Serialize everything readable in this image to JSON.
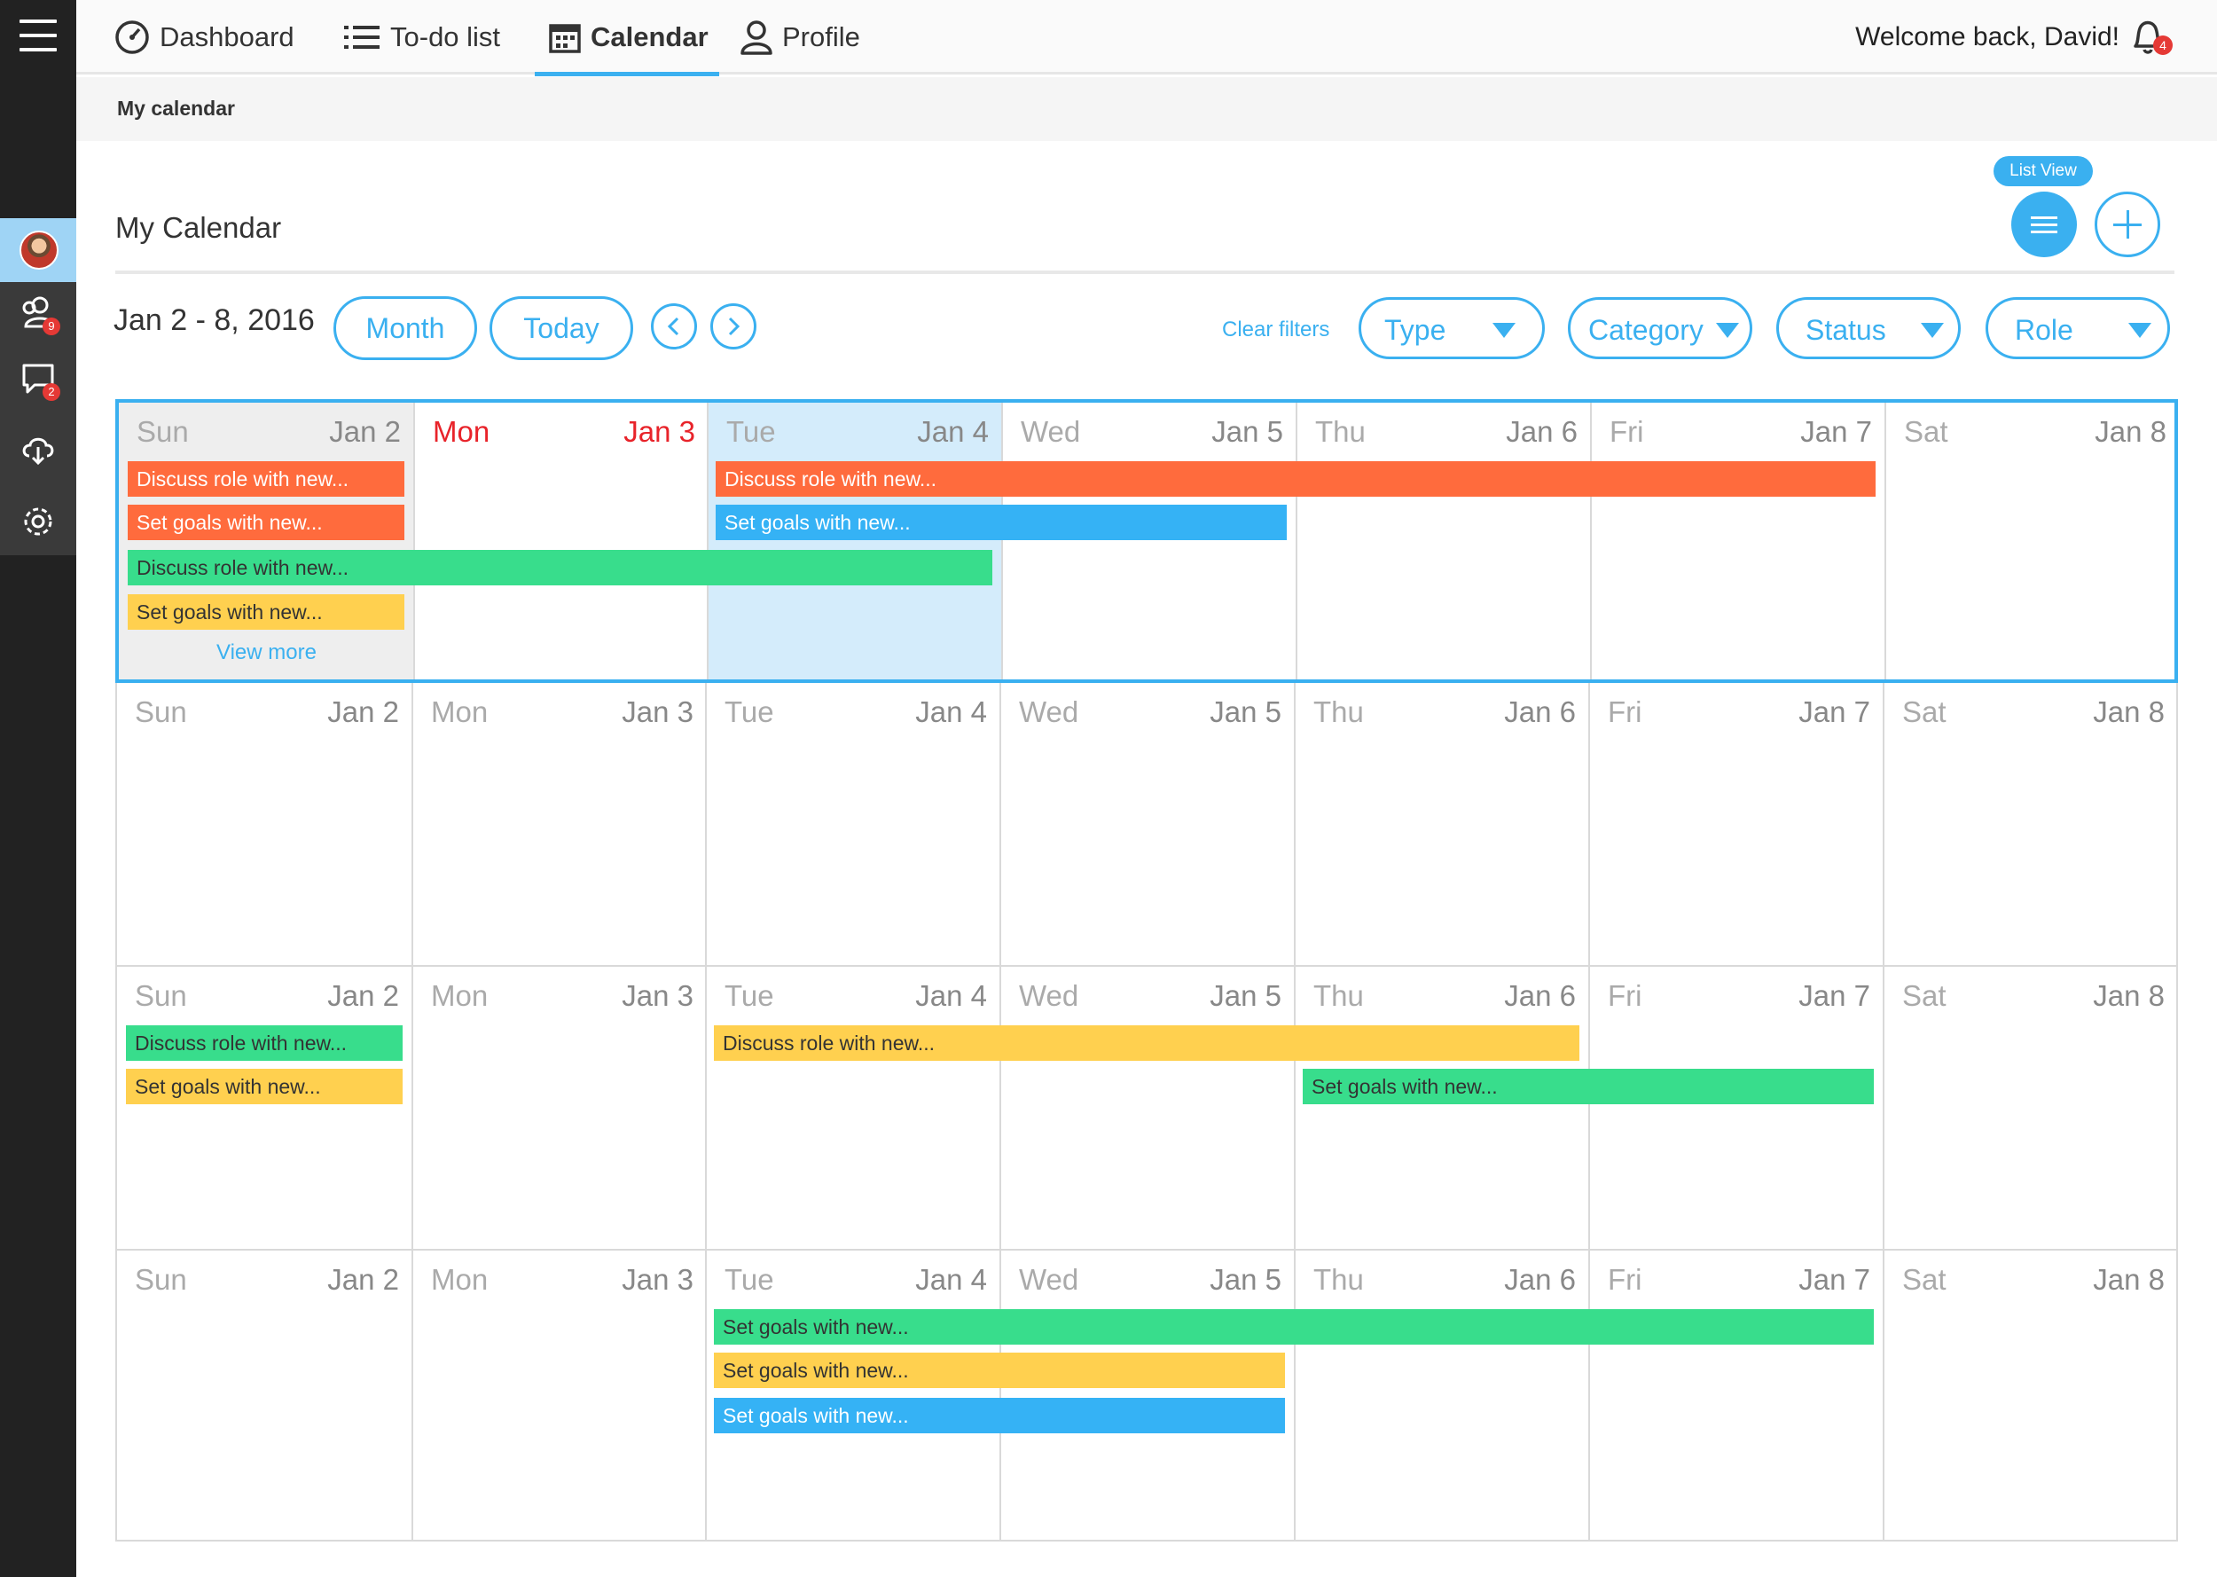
{
  "colors": {
    "accent": "#3ab0f0",
    "event_orange": "#ff6b3d",
    "event_blue": "#35b2f5",
    "event_green": "#38dd8c",
    "event_yellow": "#ffd04f",
    "today_red": "#e8232a"
  },
  "sidebar": {
    "menu_icon": "hamburger-icon",
    "items": [
      {
        "icon": "user-avatar",
        "badge": ""
      },
      {
        "icon": "people-icon",
        "badge": "9"
      },
      {
        "icon": "chat-icon",
        "badge": "2"
      },
      {
        "icon": "cloud-download-icon",
        "badge": ""
      },
      {
        "icon": "gear-icon",
        "badge": ""
      }
    ]
  },
  "topnav": {
    "items": [
      {
        "label": "Dashboard",
        "icon": "gauge-icon"
      },
      {
        "label": "To-do list",
        "icon": "list-icon"
      },
      {
        "label": "Calendar",
        "icon": "calendar-icon"
      },
      {
        "label": "Profile",
        "icon": "person-icon"
      }
    ],
    "welcome": "Welcome back, David!",
    "notifications": "4"
  },
  "breadcrumb": "My calendar",
  "page": {
    "title": "My Calendar",
    "list_view_tip": "List View"
  },
  "controls": {
    "date_range": "Jan 2 - 8, 2016",
    "month": "Month",
    "today": "Today",
    "clear_filters": "Clear filters",
    "filters": [
      "Type",
      "Category",
      "Status",
      "Role"
    ]
  },
  "calendar": {
    "days": [
      {
        "name": "Sun",
        "date": "Jan 2"
      },
      {
        "name": "Mon",
        "date": "Jan 3"
      },
      {
        "name": "Tue",
        "date": "Jan 4"
      },
      {
        "name": "Wed",
        "date": "Jan 5"
      },
      {
        "name": "Thu",
        "date": "Jan 6"
      },
      {
        "name": "Fri",
        "date": "Jan 7"
      },
      {
        "name": "Sat",
        "date": "Jan 8"
      }
    ],
    "view_more": "View more",
    "weeks": [
      {
        "events": [
          {
            "title": "Discuss role with new...",
            "start": 0,
            "span": 1,
            "lane": 0,
            "color": "orange"
          },
          {
            "title": "Set goals with new...",
            "start": 0,
            "span": 1,
            "lane": 1,
            "color": "orange"
          },
          {
            "title": "Discuss role with new...",
            "start": 0,
            "span": 3,
            "lane": 2,
            "color": "green"
          },
          {
            "title": "Set goals with new...",
            "start": 0,
            "span": 1,
            "lane": 3,
            "color": "yellow"
          },
          {
            "title": "Discuss role with new...",
            "start": 2,
            "span": 4,
            "lane": 0,
            "color": "orange"
          },
          {
            "title": "Set goals with new...",
            "start": 2,
            "span": 2,
            "lane": 1,
            "color": "blue"
          }
        ]
      },
      {
        "events": []
      },
      {
        "events": [
          {
            "title": "Discuss role with new...",
            "start": 0,
            "span": 1,
            "lane": 0,
            "color": "green"
          },
          {
            "title": "Set goals with new...",
            "start": 0,
            "span": 1,
            "lane": 1,
            "color": "yellow"
          },
          {
            "title": "Discuss role with new...",
            "start": 2,
            "span": 3,
            "lane": 0,
            "color": "yellow"
          },
          {
            "title": "Set goals with new...",
            "start": 4,
            "span": 2,
            "lane": 1,
            "color": "green"
          }
        ]
      },
      {
        "events": [
          {
            "title": "Set goals with new...",
            "start": 2,
            "span": 4,
            "lane": 0,
            "color": "green"
          },
          {
            "title": "Set goals with new...",
            "start": 2,
            "span": 2,
            "lane": 1,
            "color": "yellow"
          },
          {
            "title": "Set goals with new...",
            "start": 2,
            "span": 2,
            "lane": 2,
            "color": "blue"
          }
        ]
      }
    ]
  }
}
